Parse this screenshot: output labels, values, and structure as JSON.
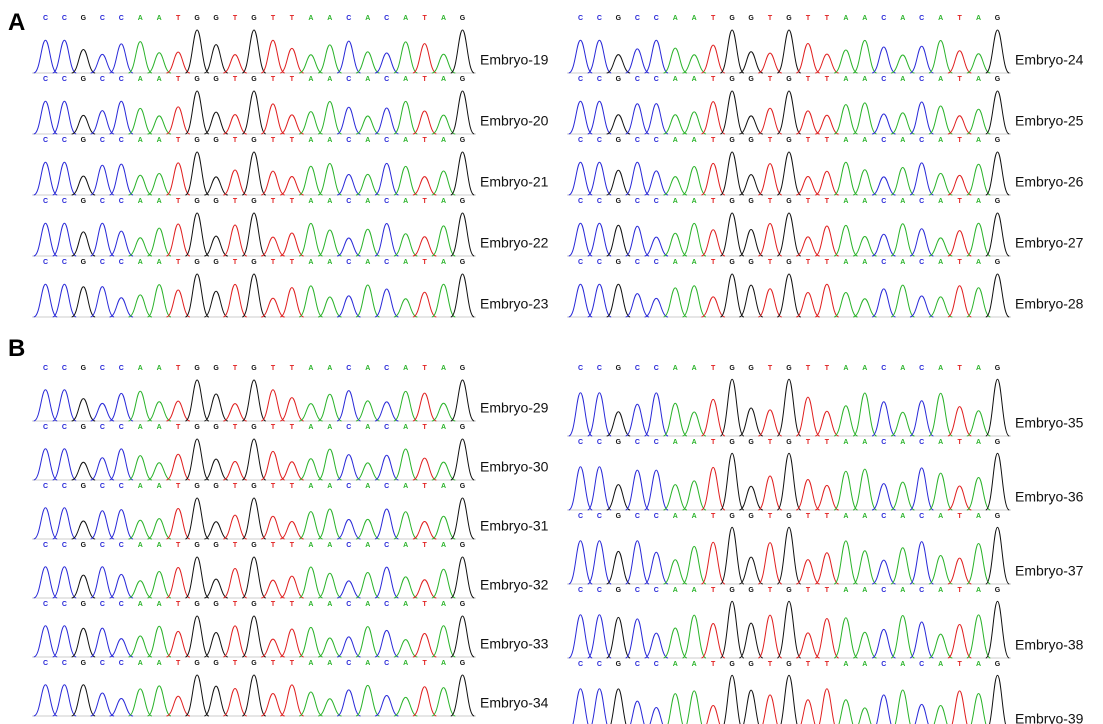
{
  "panels": [
    {
      "label": "A",
      "columns": [
        [
          {
            "label": "Embryo-19",
            "sequence": "CCGCCAATGGTGTTAACACATAG"
          },
          {
            "label": "Embryo-20",
            "sequence": "CCGCCAATGGTGTTAACACATAG"
          },
          {
            "label": "Embryo-21",
            "sequence": "CCGCCAATGGTGTTAACACATAG"
          },
          {
            "label": "Embryo-22",
            "sequence": "CCGCCAATGGTGTTAACACATAG"
          },
          {
            "label": "Embryo-23",
            "sequence": "CCGCCAATGGTGTTAACACATAG"
          }
        ],
        [
          {
            "label": "Embryo-24",
            "sequence": "CCGCCAATGGTGTTAACACATAG"
          },
          {
            "label": "Embryo-25",
            "sequence": "CCGCCAATGGTGTTAACACATAG"
          },
          {
            "label": "Embryo-26",
            "sequence": "CCGCCAATGGTGTTAACACATAG"
          },
          {
            "label": "Embryo-27",
            "sequence": "CCGCCAATGGTGTTAACACATAG"
          },
          {
            "label": "Embryo-28",
            "sequence": "CCGCCAATGGTGTTAACACATAG"
          }
        ]
      ]
    },
    {
      "label": "B",
      "columns": [
        [
          {
            "label": "Embryo-29",
            "sequence": "CCGCCAATGGTGTTAACACATAG"
          },
          {
            "label": "Embryo-30",
            "sequence": "CCGCCAATGGTGTTAACACATAG"
          },
          {
            "label": "Embryo-31",
            "sequence": "CCGCCAATGGTGTTAACACATAG"
          },
          {
            "label": "Embryo-32",
            "sequence": "CCGCCAATGGTGTTAACACATAG"
          },
          {
            "label": "Embryo-33",
            "sequence": "CCGCCAATGGTGTTAACACATAG"
          },
          {
            "label": "Embryo-34",
            "sequence": "CCGCCAATGGTGTTAACACATAG"
          }
        ],
        [
          {
            "label": "Embryo-35",
            "sequence": "CCGCCAATGGTGTTAACACATAG"
          },
          {
            "label": "Embryo-36",
            "sequence": "CCGCCAATGGTGTTAACACATAG"
          },
          {
            "label": "Embryo-37",
            "sequence": "CCGCCAATGGTGTTAACACATAG"
          },
          {
            "label": "Embryo-38",
            "sequence": "CCGCCAATGGTGTTAACACATAG"
          },
          {
            "label": "Embryo-39",
            "sequence": "CCGCCAATGGTGTTAACACATAG"
          }
        ]
      ]
    }
  ]
}
